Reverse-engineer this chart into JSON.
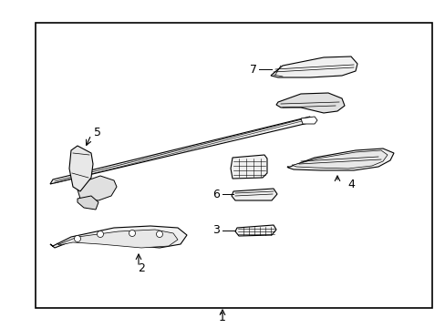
{
  "bg_color": "#ffffff",
  "border_color": "#000000",
  "line_color": "#000000",
  "figure_width": 4.89,
  "figure_height": 3.6,
  "dpi": 100,
  "border": [
    0.08,
    0.07,
    0.97,
    0.94
  ]
}
